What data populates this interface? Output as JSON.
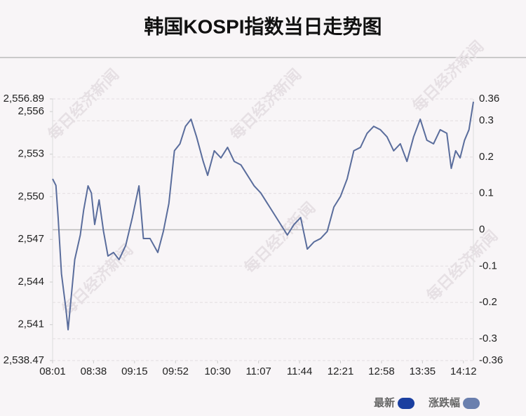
{
  "chart_data": {
    "type": "line",
    "title": "韩国KOSPI指数当日走势图",
    "watermark": "每日经济新闻",
    "x": [
      0,
      3,
      5,
      8,
      12,
      14,
      17,
      20,
      25,
      28,
      32,
      35,
      38,
      42,
      46,
      50,
      55,
      60,
      66,
      72,
      78,
      82,
      88,
      95,
      100,
      105,
      110,
      115,
      120,
      125,
      130,
      136,
      140,
      146,
      152,
      158,
      164,
      170,
      176,
      182,
      188,
      194,
      200,
      206,
      212,
      218,
      224,
      230,
      236,
      242,
      248,
      254,
      260,
      266,
      272,
      278,
      284,
      290,
      296,
      302,
      308,
      314,
      320,
      326,
      332,
      338,
      344,
      350,
      356,
      360,
      364,
      368,
      372,
      376,
      380
    ],
    "series": [
      {
        "color": "#5a6d9c",
        "values": [
          2551.26,
          2550.8,
          2548.54,
          2544.59,
          2542.12,
          2540.64,
          2543.11,
          2545.58,
          2547.31,
          2549.04,
          2550.77,
          2550.27,
          2548.05,
          2549.78,
          2547.56,
          2545.83,
          2546.08,
          2545.58,
          2546.57,
          2548.54,
          2550.77,
          2547.06,
          2547.06,
          2546.08,
          2547.56,
          2549.53,
          2553.24,
          2553.73,
          2554.96,
          2555.46,
          2554.22,
          2552.49,
          2551.51,
          2553.24,
          2552.74,
          2553.48,
          2552.49,
          2552.25,
          2551.51,
          2550.77,
          2550.27,
          2549.53,
          2548.79,
          2548.05,
          2547.31,
          2548.05,
          2548.54,
          2546.32,
          2546.82,
          2547.06,
          2547.56,
          2549.28,
          2550.03,
          2551.26,
          2553.24,
          2553.48,
          2554.47,
          2554.96,
          2554.72,
          2554.22,
          2553.24,
          2553.73,
          2552.49,
          2554.22,
          2555.46,
          2553.98,
          2553.73,
          2554.72,
          2554.47,
          2552.0,
          2553.24,
          2552.74,
          2553.98,
          2554.72,
          2556.69
        ]
      }
    ],
    "xlim": [
      0,
      380
    ],
    "xticks": [
      {
        "value": 0,
        "label": "08:01"
      },
      {
        "value": 37,
        "label": "08:38"
      },
      {
        "value": 74,
        "label": "09:15"
      },
      {
        "value": 111,
        "label": "09:52"
      },
      {
        "value": 149,
        "label": "10:30"
      },
      {
        "value": 186,
        "label": "11:07"
      },
      {
        "value": 223,
        "label": "11:44"
      },
      {
        "value": 260,
        "label": "12:21"
      },
      {
        "value": 297,
        "label": "12:58"
      },
      {
        "value": 334,
        "label": "13:35"
      },
      {
        "value": 371,
        "label": "14:12"
      }
    ],
    "ylim": [
      2538.47,
      2556.89
    ],
    "yticks": [
      {
        "value": 2556.89,
        "label": "2,556.89"
      },
      {
        "value": 2556,
        "label": "2,556"
      },
      {
        "value": 2553,
        "label": "2,553"
      },
      {
        "value": 2550,
        "label": "2,550"
      },
      {
        "value": 2547,
        "label": "2,547"
      },
      {
        "value": 2544,
        "label": "2,544"
      },
      {
        "value": 2541,
        "label": "2,541"
      },
      {
        "value": 2538.47,
        "label": "2,538.47"
      }
    ],
    "y2lim": [
      -0.36,
      0.36
    ],
    "y2ticks": [
      0.36,
      0.3,
      0.2,
      0.1,
      0,
      -0.1,
      -0.2,
      -0.3,
      -0.36
    ],
    "legend": [
      {
        "label": "最新",
        "color": "#1b3fa0"
      },
      {
        "label": "涨跌幅",
        "color": "#6a7fae"
      }
    ]
  }
}
